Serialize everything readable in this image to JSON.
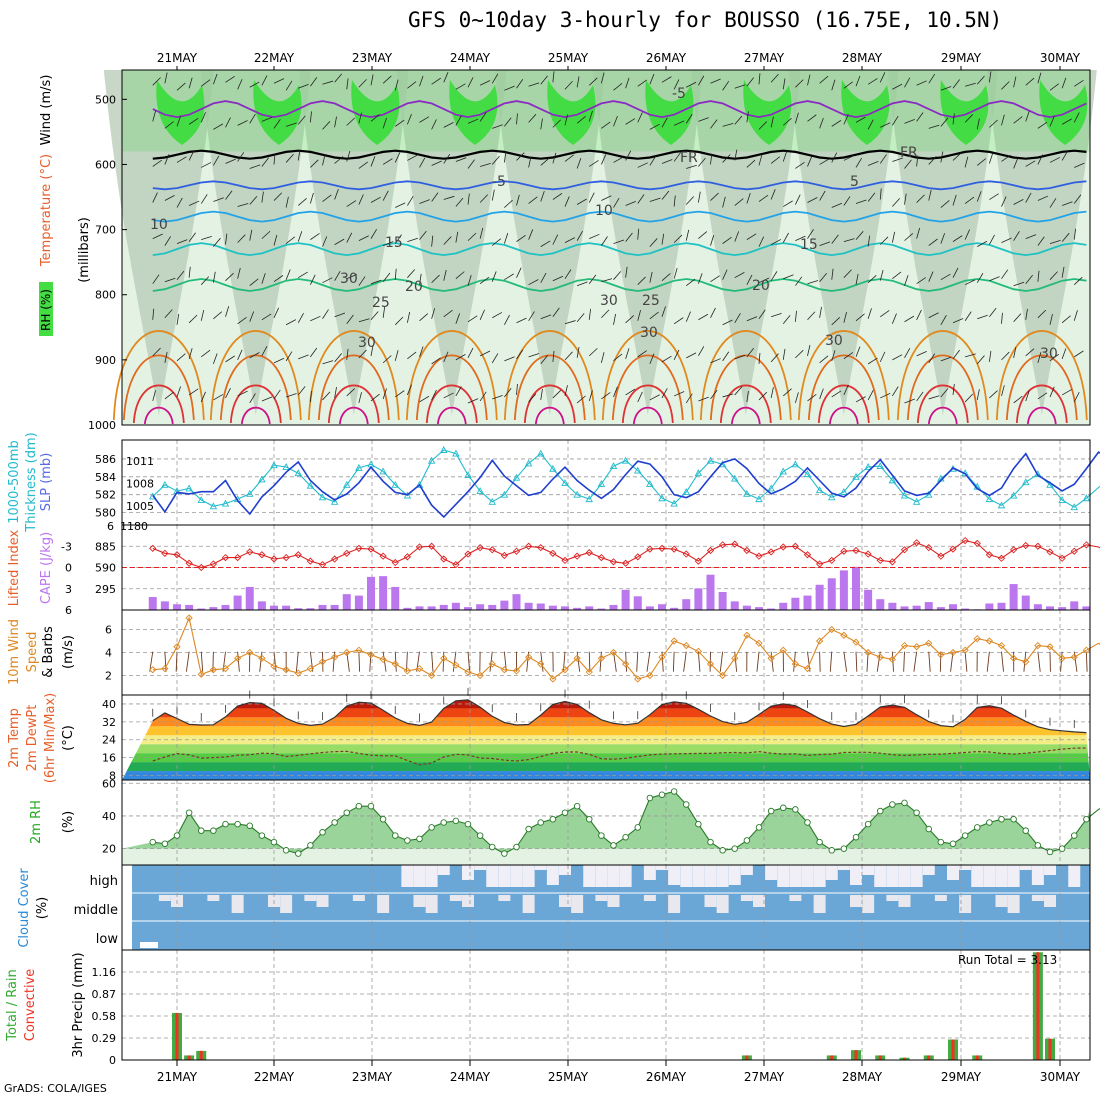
{
  "title": "GFS 0~10day 3-hourly for BOUSSO (16.75E, 10.5N)",
  "credit": "GrADS: COLA/IGES",
  "dates": [
    "21MAY",
    "22MAY",
    "23MAY",
    "24MAY",
    "25MAY",
    "26MAY",
    "27MAY",
    "28MAY",
    "29MAY",
    "30MAY"
  ],
  "colors": {
    "rh_green": "#33dd33",
    "rh_light": "#e4f2e4",
    "rh_gray": "#b7c9b7",
    "slp": "#1f3fcf",
    "thickness": "#22bbcc",
    "lifted": "#dd2222",
    "cape": "#bb77ee",
    "wind": "#dd8822",
    "precip_total": "#44aa44",
    "precip_conv": "#ee3322",
    "cloud_blue": "#6aa7d6",
    "cloud_white": "#f0eff7"
  },
  "panels": {
    "upper": {
      "ylabel_rh": "RH (%)",
      "ylabel_temp": "Temperature (°C)",
      "ylabel_wind": "Wind (m/s)",
      "ylabel_mb": "(millibars)",
      "ticks": [
        "500",
        "600",
        "700",
        "800",
        "900",
        "1000"
      ],
      "contour_labels": [
        "-5",
        "FR",
        "FR",
        "-5",
        "5",
        "10",
        "10",
        "15",
        "15",
        "20",
        "20",
        "25",
        "25",
        "30",
        "30",
        "30",
        "30",
        "30",
        "30"
      ]
    },
    "slp": {
      "ylabel_a": "1000-500mb",
      "ylabel_b": "Thickness (dm)",
      "ylabel_c": "SLP (mb)",
      "left_ticks": [
        "586",
        "584",
        "582",
        "580"
      ],
      "right_ticks": [
        "1011",
        "1008",
        "1005"
      ],
      "bottom_left": "6",
      "bottom_right": "1180"
    },
    "cape": {
      "ylabel_a": "Lifted Index",
      "ylabel_b": "CAPE (J/kg)",
      "left_ticks": [
        "-3",
        "0",
        "3",
        "6"
      ],
      "right_ticks": [
        "885",
        "590",
        "295"
      ]
    },
    "wind10": {
      "ylabel_a": "10m Wind",
      "ylabel_b": "Speed",
      "ylabel_c": "& Barbs",
      "ylabel_d": "(m/s)",
      "ticks": [
        "6",
        "4",
        "2"
      ]
    },
    "temp": {
      "ylabel_a": "2m Temp",
      "ylabel_b": "2m DewPt",
      "ylabel_c": "(6hr Min/Max)",
      "ylabel_d": "(°C)",
      "ticks": [
        "40",
        "32",
        "24",
        "16",
        "8"
      ]
    },
    "rh": {
      "ylabel_a": "2m RH",
      "ylabel_b": "(%)",
      "ticks": [
        "60",
        "40",
        "20"
      ]
    },
    "cloud": {
      "ylabel_a": "Cloud Cover",
      "ylabel_b": "(%)",
      "ticks": [
        "high",
        "middle",
        "low"
      ]
    },
    "precip": {
      "ylabel_a": "Total / Rain",
      "ylabel_b": "Convective",
      "ylabel_c": "3hr Precip (mm)",
      "ticks": [
        "1.16",
        "0.87",
        "0.58",
        "0.29",
        "0"
      ],
      "run_total_label": "Run Total = 3.13"
    }
  },
  "chart_data": [
    {
      "type": "line",
      "name": "1000-500mb thickness and SLP",
      "x_unit": "3-hourly steps from 21MAY",
      "series": [
        {
          "name": "SLP (mb)",
          "values": [
            1006.4,
            1004.2,
            1006.8,
            1006.6,
            1006.9,
            1006.9,
            1008.4,
            1005.7,
            1003.9,
            1006.2,
            1007.7,
            1009.5,
            1010.9,
            1008.4,
            1006.9,
            1005.8,
            1006.6,
            1008.1,
            1010.2,
            1008.3,
            1006.8,
            1006.5,
            1007.8,
            1005.1,
            1003.5,
            1005.2,
            1006.9,
            1008.8,
            1011.1,
            1009.0,
            1007.7,
            1006.4,
            1006.8,
            1008.6,
            1010.2,
            1008.4,
            1007.1,
            1006.0,
            1007.2,
            1009.2,
            1011.0,
            1010.6,
            1008.9,
            1006.5,
            1006.1,
            1006.9,
            1008.9,
            1010.8,
            1011.3,
            1010.0,
            1008.0,
            1006.6,
            1007.3,
            1008.3,
            1010.1,
            1008.4,
            1006.7,
            1006.2,
            1007.4,
            1009.6,
            1011.2,
            1009.1,
            1007.0,
            1006.4,
            1006.7,
            1008.4,
            1010.1,
            1009.3,
            1007.3,
            1006.4,
            1007.4,
            1010.0,
            1012.0,
            1009.1,
            1008.1,
            1007.0,
            1007.9,
            1010.0,
            1012.2,
            1011.4,
            1009.4,
            1011.4
          ]
        },
        {
          "name": "Thickness (dm)",
          "values": [
            581.8,
            583.1,
            582.4,
            582.7,
            581.4,
            580.7,
            581.0,
            581.5,
            582.1,
            583.7,
            585.3,
            585.1,
            584.4,
            583.0,
            581.7,
            581.2,
            583.1,
            585.0,
            585.4,
            584.6,
            583.1,
            581.9,
            583.1,
            585.8,
            587.0,
            586.6,
            584.2,
            582.4,
            581.2,
            582.0,
            583.9,
            585.5,
            586.6,
            584.9,
            583.3,
            582.0,
            581.5,
            583.2,
            585.2,
            585.8,
            584.7,
            583.2,
            581.6,
            581.0,
            582.3,
            584.4,
            585.8,
            585.4,
            583.8,
            582.1,
            581.5,
            582.7,
            584.6,
            585.4,
            584.3,
            582.5,
            581.7,
            582.3,
            584.0,
            585.1,
            585.2,
            583.6,
            581.9,
            581.2,
            582.0,
            583.8,
            584.9,
            584.4,
            582.9,
            581.5,
            580.8,
            581.9,
            583.4,
            584.3,
            583.1,
            581.4,
            580.6,
            581.6,
            582.8,
            583.9,
            582.5,
            580.5
          ]
        }
      ]
    },
    {
      "type": "bar",
      "name": "CAPE and Lifted Index",
      "series": [
        {
          "name": "CAPE (J/kg)",
          "values": [
            180,
            120,
            80,
            70,
            20,
            40,
            70,
            200,
            320,
            120,
            60,
            60,
            25,
            25,
            70,
            70,
            220,
            200,
            460,
            470,
            320,
            30,
            50,
            50,
            70,
            100,
            40,
            80,
            70,
            130,
            220,
            100,
            90,
            60,
            50,
            30,
            50,
            20,
            70,
            280,
            190,
            50,
            80,
            30,
            150,
            300,
            490,
            250,
            120,
            60,
            40,
            20,
            100,
            170,
            200,
            350,
            440,
            550,
            600,
            280,
            150,
            100,
            50,
            60,
            110,
            40,
            80,
            20,
            10,
            90,
            100,
            360,
            200,
            80,
            50,
            40,
            120,
            50,
            70,
            110,
            330,
            260,
            80,
            60,
            120,
            70
          ]
        },
        {
          "name": "Lifted Index",
          "values": [
            -2.7,
            -2.0,
            -1.8,
            -0.6,
            0.0,
            -0.5,
            -1.4,
            -1.4,
            -2.2,
            -1.8,
            -1.2,
            -1.4,
            -1.8,
            -0.9,
            -0.4,
            -1.2,
            -2.0,
            -2.7,
            -2.6,
            -1.6,
            -0.7,
            -1.5,
            -2.9,
            -3.0,
            -1.2,
            -0.4,
            -1.9,
            -2.8,
            -2.5,
            -1.7,
            -2.3,
            -3.0,
            -2.8,
            -2.0,
            -1.0,
            -1.6,
            -2.1,
            -1.4,
            -0.8,
            -0.6,
            -1.5,
            -2.6,
            -2.7,
            -2.6,
            -1.9,
            -0.9,
            -2.4,
            -3.2,
            -3.3,
            -2.4,
            -1.6,
            -2.2,
            -2.9,
            -3.0,
            -1.8,
            -0.5,
            -1.0,
            -2.3,
            -2.4,
            -1.9,
            -1.0,
            -0.8,
            -2.5,
            -3.5,
            -2.8,
            -1.6,
            -2.6,
            -3.8,
            -3.4,
            -1.8,
            -1.3,
            -2.5,
            -3.1,
            -3.0,
            -2.2,
            -1.3,
            -2.3,
            -3.2,
            -2.9,
            -2.0,
            -1.4,
            -1.9
          ]
        }
      ]
    },
    {
      "type": "line",
      "name": "10m wind speed (m/s)",
      "values": [
        2.5,
        2.6,
        4.5,
        7.0,
        2.1,
        2.5,
        2.6,
        3.5,
        4.0,
        3.5,
        2.8,
        2.5,
        2.2,
        2.6,
        3.2,
        3.6,
        4.0,
        4.2,
        3.8,
        3.4,
        3.0,
        2.4,
        2.6,
        2.0,
        3.5,
        2.9,
        2.3,
        2.0,
        3.0,
        2.5,
        2.4,
        3.6,
        3.0,
        1.7,
        2.5,
        3.5,
        2.3,
        3.5,
        4.0,
        3.0,
        1.7,
        2.0,
        3.6,
        5.0,
        4.6,
        4.1,
        3.0,
        2.0,
        3.5,
        5.5,
        4.8,
        3.5,
        4.2,
        3.0,
        2.6,
        5.0,
        6.0,
        5.5,
        4.9,
        4.0,
        3.6,
        3.4,
        4.6,
        4.5,
        4.8,
        3.8,
        4.0,
        4.2,
        5.2,
        5.0,
        4.6,
        3.5,
        3.2,
        4.6,
        4.5,
        3.5,
        3.6,
        4.2,
        4.8,
        4.0,
        3.4,
        4.5,
        4.8,
        3.2,
        1.7,
        1.2,
        3.0,
        4.8
      ]
    },
    {
      "type": "area",
      "name": "2m temperature and dewpoint (°C)",
      "series": [
        {
          "name": "2m Temp",
          "values": [
            32.5,
            36.0,
            33.5,
            30.9,
            30.6,
            30.7,
            34.2,
            39.1,
            40.6,
            40.3,
            37.1,
            33.6,
            31.3,
            30.4,
            31.0,
            34.0,
            39.1,
            40.8,
            40.4,
            37.2,
            33.7,
            31.3,
            30.4,
            31.9,
            38.0,
            41.4,
            41.8,
            38.6,
            34.5,
            31.7,
            30.6,
            30.8,
            35.0,
            39.8,
            41.1,
            39.8,
            36.1,
            32.9,
            31.3,
            30.7,
            31.4,
            35.2,
            39.7,
            40.9,
            40.3,
            37.6,
            34.6,
            32.1,
            30.9,
            31.8,
            35.3,
            39.0,
            40.0,
            39.2,
            36.4,
            33.4,
            31.0,
            29.9,
            30.9,
            34.6,
            38.7,
            39.5,
            38.5,
            35.2,
            32.1,
            30.3,
            29.8,
            33.1,
            38.4,
            39.2,
            38.1,
            35.0,
            32.2,
            29.8,
            28.5,
            28.0,
            27.5,
            27.2
          ]
        },
        {
          "name": "2m DewPt",
          "values": [
            14.5,
            16.3,
            17.8,
            17.2,
            15.8,
            16.0,
            16.3,
            17.1,
            17.3,
            18.0,
            17.8,
            16.5,
            17.0,
            17.7,
            18.3,
            18.7,
            18.8,
            17.9,
            17.1,
            16.8,
            16.8,
            14.7,
            12.8,
            13.6,
            16.3,
            17.5,
            17.2,
            15.8,
            15.6,
            14.9,
            14.5,
            15.1,
            16.5,
            17.9,
            18.5,
            18.5,
            17.5,
            15.5,
            15.3,
            15.7,
            16.5,
            17.2,
            17.6,
            17.7,
            17.8,
            17.9,
            17.9,
            18.2,
            18.3,
            18.1,
            18.7,
            18.0,
            17.6,
            17.7,
            17.0,
            17.4,
            17.6,
            18.3,
            18.4,
            18.4,
            18.0,
            17.3,
            17.0,
            17.2,
            17.5,
            17.6,
            17.9,
            18.3,
            18.7,
            18.5,
            17.9,
            17.6,
            18.0,
            18.5,
            19.2,
            19.8,
            20.2,
            20.3
          ]
        }
      ]
    },
    {
      "type": "area",
      "name": "2m RH (%)",
      "values": [
        24,
        23,
        28,
        42,
        31,
        31,
        35,
        35,
        34,
        28,
        24,
        19,
        17,
        22,
        30,
        36,
        42,
        46,
        46,
        38,
        28,
        25,
        26,
        33,
        36,
        37,
        35,
        28,
        21,
        17,
        21,
        32,
        36,
        38,
        42,
        46,
        38,
        28,
        22,
        27,
        33,
        51,
        53,
        55,
        47,
        35,
        24,
        19,
        20,
        25,
        33,
        43,
        45,
        44,
        36,
        24,
        19,
        20,
        27,
        35,
        43,
        47,
        48,
        42,
        32,
        24,
        23,
        28,
        33,
        36,
        38,
        38,
        31,
        22,
        18,
        20,
        28,
        38,
        44,
        48,
        53,
        57,
        56
      ]
    },
    {
      "type": "bar",
      "name": "3hr precip (mm)",
      "categories": [
        "21MAY 00",
        "21MAY 03",
        "21MAY 06",
        "26MAY 21",
        "27MAY 18",
        "28MAY 00",
        "28MAY 06",
        "28MAY 12",
        "28MAY 18",
        "29MAY 00",
        "29MAY 06",
        "29MAY 21",
        "30MAY 00",
        "30MAY 03"
      ],
      "series": [
        {
          "name": "Total / Rain",
          "values": [
            0.62,
            0.06,
            0.12,
            0.06,
            0.06,
            0.13,
            0.06,
            0.03,
            0.06,
            0.27,
            0.06,
            1.42,
            0.28,
            0.0
          ]
        },
        {
          "name": "Convective",
          "values": [
            0.62,
            0.06,
            0.12,
            0.06,
            0.06,
            0.13,
            0.06,
            0.03,
            0.06,
            0.27,
            0.06,
            1.42,
            0.28,
            0.0
          ]
        }
      ],
      "ylim": [
        0,
        1.45
      ]
    }
  ]
}
